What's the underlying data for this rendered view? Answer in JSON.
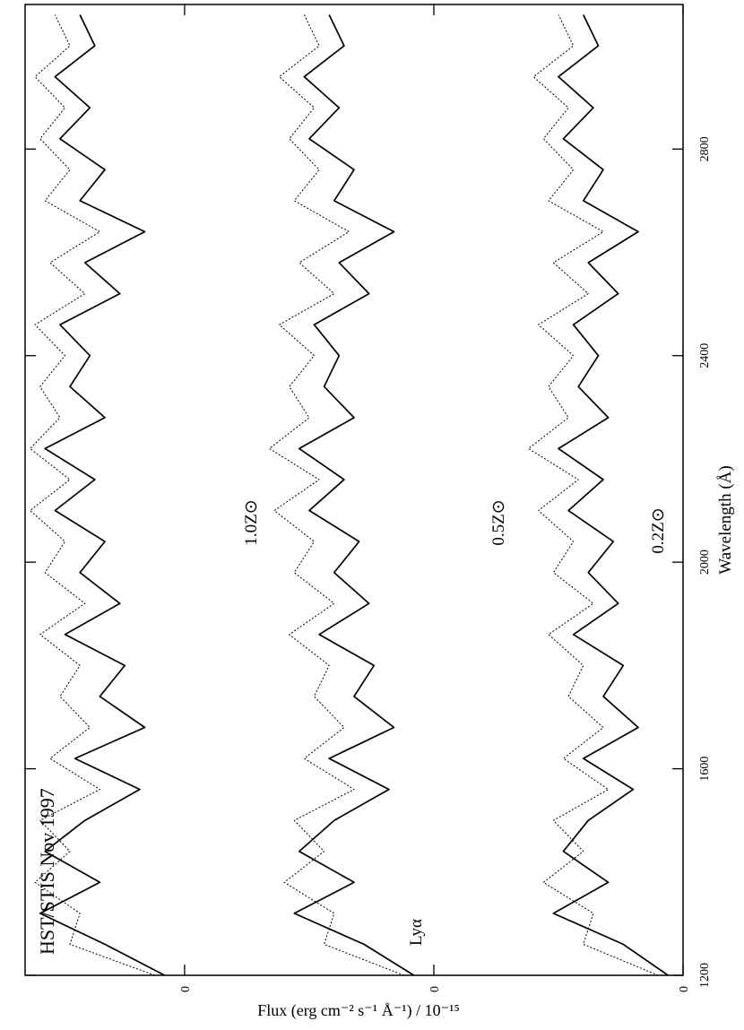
{
  "chart_data": {
    "type": "line",
    "title": "HST/STIS Nov 1997",
    "xlabel": "Wavelength (Å)",
    "ylabel": "Flux (erg cm⁻² s⁻¹ Å⁻¹) / 10⁻¹⁵",
    "x": [
      1200,
      1260,
      1320,
      1380,
      1440,
      1500,
      1560,
      1620,
      1680,
      1740,
      1800,
      1860,
      1920,
      1980,
      2040,
      2100,
      2160,
      2220,
      2280,
      2340,
      2400,
      2460,
      2520,
      2580,
      2640,
      2700,
      2760,
      2820,
      2880,
      2940,
      3000,
      3060
    ],
    "series": [
      {
        "color": "#000000",
        "style": "solid",
        "values": [
          0.3,
          1.2,
          2.6,
          1.5,
          2.4,
          1.9,
          1.0,
          2.0,
          0.9,
          1.6,
          1.2,
          2.2,
          1.3,
          1.9,
          1.4,
          2.3,
          1.6,
          2.5,
          1.5,
          2.1,
          1.7,
          2.2,
          1.3,
          1.9,
          0.9,
          2.0,
          1.6,
          2.4,
          1.8,
          2.5,
          1.7,
          2.0
        ]
      },
      {
        "color": "#000000",
        "style": "dotted",
        "values": [
          0.5,
          2.0,
          1.8,
          2.8,
          2.0,
          2.6,
          1.5,
          2.4,
          1.6,
          2.3,
          2.0,
          2.7,
          1.8,
          2.6,
          2.2,
          2.9,
          2.1,
          3.1,
          2.3,
          2.7,
          2.2,
          2.9,
          1.9,
          2.6,
          1.6,
          2.7,
          2.2,
          2.8,
          2.3,
          3.0,
          2.2,
          2.5
        ]
      },
      {
        "color": "#000000",
        "style": "solid",
        "values": [
          5.4,
          6.4,
          7.8,
          6.6,
          7.7,
          7.0,
          5.9,
          7.1,
          5.8,
          6.6,
          6.2,
          7.3,
          6.3,
          7.0,
          6.5,
          7.5,
          6.8,
          7.7,
          6.6,
          7.2,
          6.9,
          7.4,
          6.3,
          6.9,
          5.8,
          7.0,
          6.6,
          7.5,
          6.9,
          7.6,
          6.8,
          7.1
        ]
      },
      {
        "color": "#000000",
        "style": "dotted",
        "values": [
          5.6,
          7.2,
          7.0,
          8.0,
          7.2,
          7.8,
          6.6,
          7.6,
          6.8,
          7.4,
          7.1,
          7.9,
          7.0,
          7.8,
          7.4,
          8.2,
          7.3,
          8.3,
          7.5,
          7.9,
          7.4,
          8.1,
          7.0,
          7.7,
          6.7,
          7.8,
          7.3,
          7.9,
          7.4,
          8.1,
          7.3,
          7.6
        ]
      },
      {
        "color": "#000000",
        "style": "solid",
        "values": [
          10.4,
          11.6,
          12.9,
          11.7,
          12.8,
          12.0,
          10.9,
          12.2,
          10.8,
          11.7,
          11.2,
          12.4,
          11.3,
          12.1,
          11.6,
          12.6,
          11.8,
          12.8,
          11.6,
          12.3,
          11.9,
          12.5,
          11.3,
          12.0,
          10.8,
          12.1,
          11.6,
          12.5,
          11.9,
          12.6,
          11.8,
          12.1
        ]
      },
      {
        "color": "#000000",
        "style": "dotted",
        "values": [
          10.6,
          12.3,
          12.1,
          13.0,
          12.3,
          12.9,
          11.7,
          12.7,
          11.9,
          12.5,
          12.1,
          12.9,
          12.0,
          12.8,
          12.4,
          13.1,
          12.3,
          13.1,
          12.5,
          12.9,
          12.4,
          13.0,
          12.0,
          12.7,
          11.7,
          12.8,
          12.3,
          12.9,
          12.4,
          13.0,
          12.3,
          12.6
        ]
      }
    ],
    "annotations": [
      "0.2Z⊙",
      "0.5Z⊙",
      "1.0Z⊙",
      "Lyα"
    ],
    "xlim": [
      1200,
      3080
    ],
    "ylim": [
      0,
      13.2
    ],
    "xticks": [
      1200,
      1600,
      2000,
      2400,
      2800
    ],
    "yticks": [
      0,
      {
        "value": 5,
        "label": "0"
      },
      {
        "value": 10,
        "label": "0"
      }
    ]
  }
}
